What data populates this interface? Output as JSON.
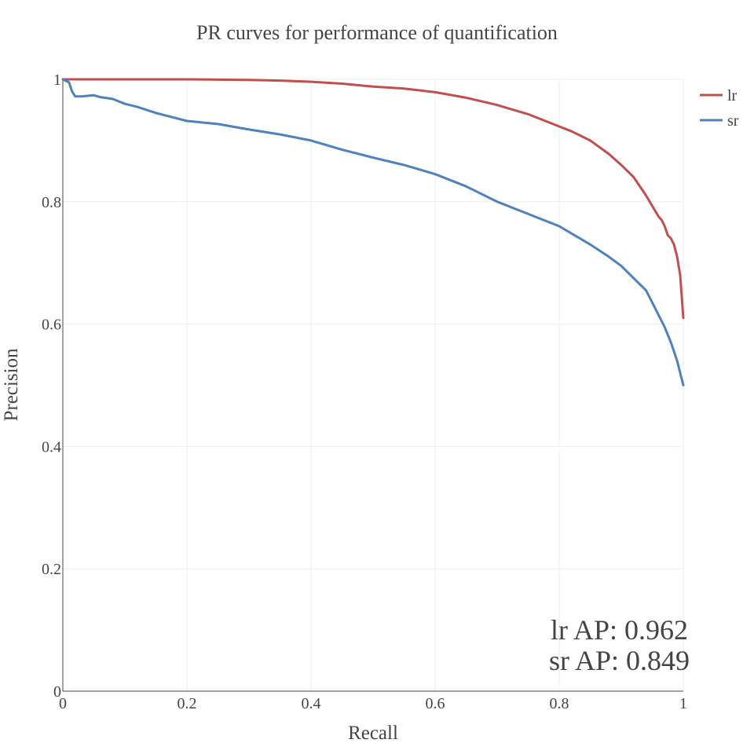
{
  "chart_data": {
    "type": "line",
    "title": "PR curves for performance of quantification",
    "xlabel": "Recall",
    "ylabel": "Precision",
    "xlim": [
      0,
      1
    ],
    "ylim": [
      0,
      1
    ],
    "xticks": [
      0,
      0.2,
      0.4,
      0.6,
      0.8,
      1
    ],
    "yticks": [
      0,
      0.2,
      0.4,
      0.6,
      0.8,
      1
    ],
    "xtick_labels": [
      "0",
      "0.2",
      "0.4",
      "0.6",
      "0.8",
      "1"
    ],
    "ytick_labels": [
      "0",
      "0.2",
      "0.4",
      "0.6",
      "0.8",
      "1"
    ],
    "grid": true,
    "legend_position": "top-right",
    "annotations": [
      "lr AP: 0.962",
      "sr AP: 0.849"
    ],
    "series": [
      {
        "name": "lr",
        "color": "#c0504d",
        "x": [
          0,
          0.05,
          0.1,
          0.2,
          0.3,
          0.35,
          0.4,
          0.45,
          0.5,
          0.55,
          0.6,
          0.65,
          0.7,
          0.75,
          0.8,
          0.82,
          0.85,
          0.88,
          0.9,
          0.92,
          0.94,
          0.95,
          0.96,
          0.965,
          0.97,
          0.975,
          0.98,
          0.985,
          0.99,
          0.995,
          1.0
        ],
        "y": [
          1.0,
          1.0,
          1.0,
          1.0,
          0.999,
          0.998,
          0.996,
          0.993,
          0.988,
          0.985,
          0.979,
          0.97,
          0.958,
          0.943,
          0.923,
          0.915,
          0.9,
          0.878,
          0.86,
          0.84,
          0.81,
          0.793,
          0.776,
          0.77,
          0.76,
          0.745,
          0.74,
          0.73,
          0.71,
          0.68,
          0.61
        ]
      },
      {
        "name": "sr",
        "color": "#4f81bd",
        "x": [
          0,
          0.01,
          0.015,
          0.02,
          0.03,
          0.05,
          0.06,
          0.08,
          0.1,
          0.12,
          0.15,
          0.2,
          0.25,
          0.3,
          0.35,
          0.4,
          0.45,
          0.5,
          0.55,
          0.6,
          0.65,
          0.7,
          0.75,
          0.8,
          0.85,
          0.88,
          0.9,
          0.92,
          0.94,
          0.95,
          0.96,
          0.97,
          0.98,
          0.99,
          0.995,
          1.0
        ],
        "y": [
          1.0,
          0.995,
          0.98,
          0.972,
          0.972,
          0.974,
          0.971,
          0.968,
          0.96,
          0.955,
          0.945,
          0.932,
          0.927,
          0.918,
          0.91,
          0.9,
          0.885,
          0.872,
          0.86,
          0.845,
          0.825,
          0.8,
          0.78,
          0.76,
          0.73,
          0.71,
          0.695,
          0.675,
          0.655,
          0.635,
          0.615,
          0.595,
          0.57,
          0.54,
          0.52,
          0.5
        ]
      }
    ]
  }
}
